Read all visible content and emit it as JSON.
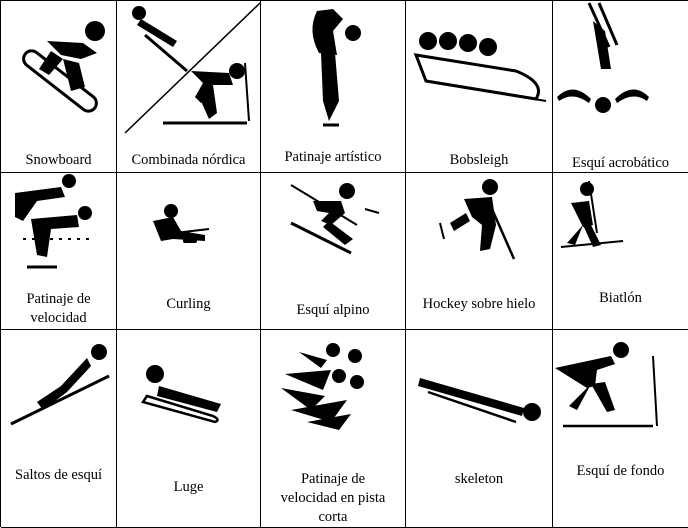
{
  "sports": [
    {
      "label": "Snowboard",
      "icon": "snowboard-icon"
    },
    {
      "label": "Combinada nórdica",
      "icon": "nordic-combined-icon"
    },
    {
      "label": "Patinaje artístico",
      "icon": "figure-skating-icon"
    },
    {
      "label": "Bobsleigh",
      "icon": "bobsleigh-icon"
    },
    {
      "label": "Esquí acrobático",
      "icon": "freestyle-skiing-icon"
    },
    {
      "label": "Patinaje de\nvelocidad",
      "icon": "speed-skating-icon"
    },
    {
      "label": "Curling",
      "icon": "curling-icon"
    },
    {
      "label": "Esquí alpino",
      "icon": "alpine-skiing-icon"
    },
    {
      "label": "Hockey sobre hielo",
      "icon": "ice-hockey-icon"
    },
    {
      "label": "Biatlón",
      "icon": "biathlon-icon"
    },
    {
      "label": "Saltos de esquí",
      "icon": "ski-jumping-icon"
    },
    {
      "label": "Luge",
      "icon": "luge-icon"
    },
    {
      "label": "Patinaje de\nvelocidad en pista\ncorta",
      "icon": "short-track-speed-skating-icon"
    },
    {
      "label": "skeleton",
      "icon": "skeleton-icon"
    },
    {
      "label": "Esquí de fondo",
      "icon": "cross-country-skiing-icon"
    }
  ]
}
